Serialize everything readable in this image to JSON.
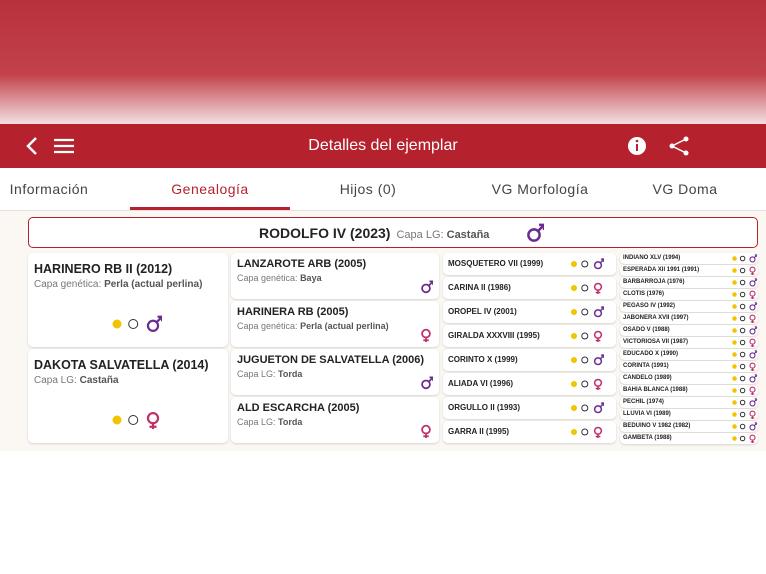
{
  "header": {
    "title": "Detalles del ejemplar"
  },
  "tabs": [
    "Información",
    "Genealogía",
    "Hijos (0)",
    "VG Morfología",
    "VG Doma"
  ],
  "root": {
    "name": "RODOLFO IV (2023)",
    "coat_label": "Capa LG:",
    "coat": "Castaña"
  },
  "generation1": [
    {
      "name": "HARINERO RB II (2012)",
      "coat_label": "Capa genética:",
      "coat": "Perla (actual perlina)"
    },
    {
      "name": "DAKOTA SALVATELLA (2014)",
      "coat_label": "Capa LG:",
      "coat": "Castaña"
    }
  ],
  "generation2": [
    {
      "name": "LANZAROTE ARB (2005)",
      "coat_label": "Capa genética:",
      "coat": "Baya"
    },
    {
      "name": "HARINERA RB (2005)",
      "coat_label": "Capa genética:",
      "coat": "Perla (actual perlina)"
    },
    {
      "name": "JUGUETON DE SALVATELLA (2006)",
      "coat_label": "Capa LG:",
      "coat": "Torda"
    },
    {
      "name": "ALD ESCARCHA (2005)",
      "coat_label": "Capa LG:",
      "coat": "Torda"
    }
  ],
  "generation3": [
    "MOSQUETERO VII (1999)",
    "CARINA II (1986)",
    "OROPEL IV (2001)",
    "GIRALDA XXXVIII (1995)",
    "CORINTO X (1999)",
    "ALIADA VI (1996)",
    "ORGULLO II (1993)",
    "GARRA II (1995)"
  ],
  "generation4": [
    "INDIANO XLV (1994)",
    "ESPERADA XII 1991 (1991)",
    "BARBARROJA (1976)",
    "CLOTIS (1976)",
    "PEGASO IV (1992)",
    "JABONERA XVII (1997)",
    "OSADO V (1988)",
    "VICTORIOSA VII (1987)",
    "EDUCADO X (1990)",
    "CORINTA (1991)",
    "CANDELO (1989)",
    "BAHIA BLANCA (1988)",
    "PECHIL (1974)",
    "LLUVIA VI (1989)",
    "BEDUINO V 1982 (1982)",
    "GAMBETA (1988)"
  ]
}
